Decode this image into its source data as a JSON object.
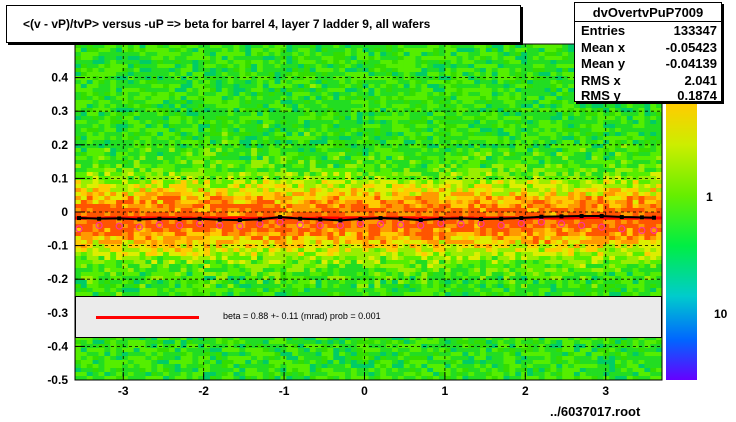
{
  "chart_data": {
    "type": "heatmap",
    "title": "<(v - vP)/tvP> versus  -uP => beta for barrel 4, layer 7 ladder 9, all wafers",
    "xlabel": "",
    "ylabel": "",
    "xlim": [
      -3.6,
      3.7
    ],
    "ylim": [
      -0.5,
      0.5
    ],
    "x_ticks": [
      "-3",
      "-2",
      "-1",
      "0",
      "1",
      "2",
      "3"
    ],
    "y_ticks": [
      "-0.5",
      "-0.4",
      "-0.3",
      "-0.2",
      "-0.1",
      "0",
      "0.1",
      "0.2",
      "0.3",
      "0.4"
    ],
    "z_scale": "log",
    "z_ticks": [
      "1",
      "10"
    ],
    "grid": true,
    "profile_black": {
      "x": [
        -3.55,
        -3.3,
        -3.05,
        -2.8,
        -2.55,
        -2.3,
        -2.05,
        -1.8,
        -1.55,
        -1.3,
        -1.05,
        -0.8,
        -0.55,
        -0.3,
        -0.05,
        0.2,
        0.45,
        0.7,
        0.95,
        1.2,
        1.45,
        1.7,
        1.95,
        2.2,
        2.45,
        2.7,
        2.95,
        3.2,
        3.45,
        3.6
      ],
      "y": [
        -0.018,
        -0.02,
        -0.019,
        -0.022,
        -0.02,
        -0.021,
        -0.02,
        -0.023,
        -0.024,
        -0.022,
        -0.015,
        -0.02,
        -0.022,
        -0.025,
        -0.021,
        -0.018,
        -0.02,
        -0.024,
        -0.02,
        -0.019,
        -0.021,
        -0.02,
        -0.018,
        -0.014,
        -0.013,
        -0.012,
        -0.012,
        -0.015,
        -0.016,
        -0.017
      ]
    },
    "profile_pink": {
      "x": [
        -3.55,
        -3.3,
        -3.05,
        -2.8,
        -2.55,
        -2.3,
        -2.05,
        -1.8,
        -1.55,
        -1.3,
        -1.05,
        -0.8,
        -0.55,
        -0.3,
        -0.05,
        0.2,
        0.45,
        0.7,
        0.95,
        1.2,
        1.45,
        1.7,
        1.95,
        2.2,
        2.45,
        2.7,
        2.95,
        3.2,
        3.45,
        3.6
      ],
      "y": [
        -0.05,
        -0.04,
        -0.042,
        -0.045,
        -0.038,
        -0.04,
        -0.035,
        -0.04,
        -0.042,
        -0.036,
        -0.03,
        -0.038,
        -0.04,
        -0.04,
        -0.035,
        -0.036,
        -0.038,
        -0.04,
        -0.034,
        -0.036,
        -0.035,
        -0.04,
        -0.034,
        -0.03,
        -0.035,
        -0.04,
        -0.045,
        -0.05,
        -0.055,
        -0.055
      ]
    },
    "fit": {
      "slope": 0.0,
      "intercept": -0.018
    },
    "legend": {
      "label": "beta =     0.88 +-  0.11 (mrad) prob = 0.001",
      "color": "#ff0000"
    }
  },
  "stats": {
    "name": "dvOvertvPuP7009",
    "rows": [
      {
        "label": "Entries",
        "value": "133347"
      },
      {
        "label": "Mean x",
        "value": "-0.05423"
      },
      {
        "label": "Mean y",
        "value": "-0.04139"
      },
      {
        "label": "RMS x",
        "value": "2.041"
      },
      {
        "label": "RMS y",
        "value": "0.1874"
      }
    ]
  },
  "footer": {
    "file": "../6037017.root"
  },
  "colors": {
    "frame": "#000000",
    "fit": "#ff0000",
    "profile_black": "#000000",
    "profile_pink": "#ff3399"
  }
}
